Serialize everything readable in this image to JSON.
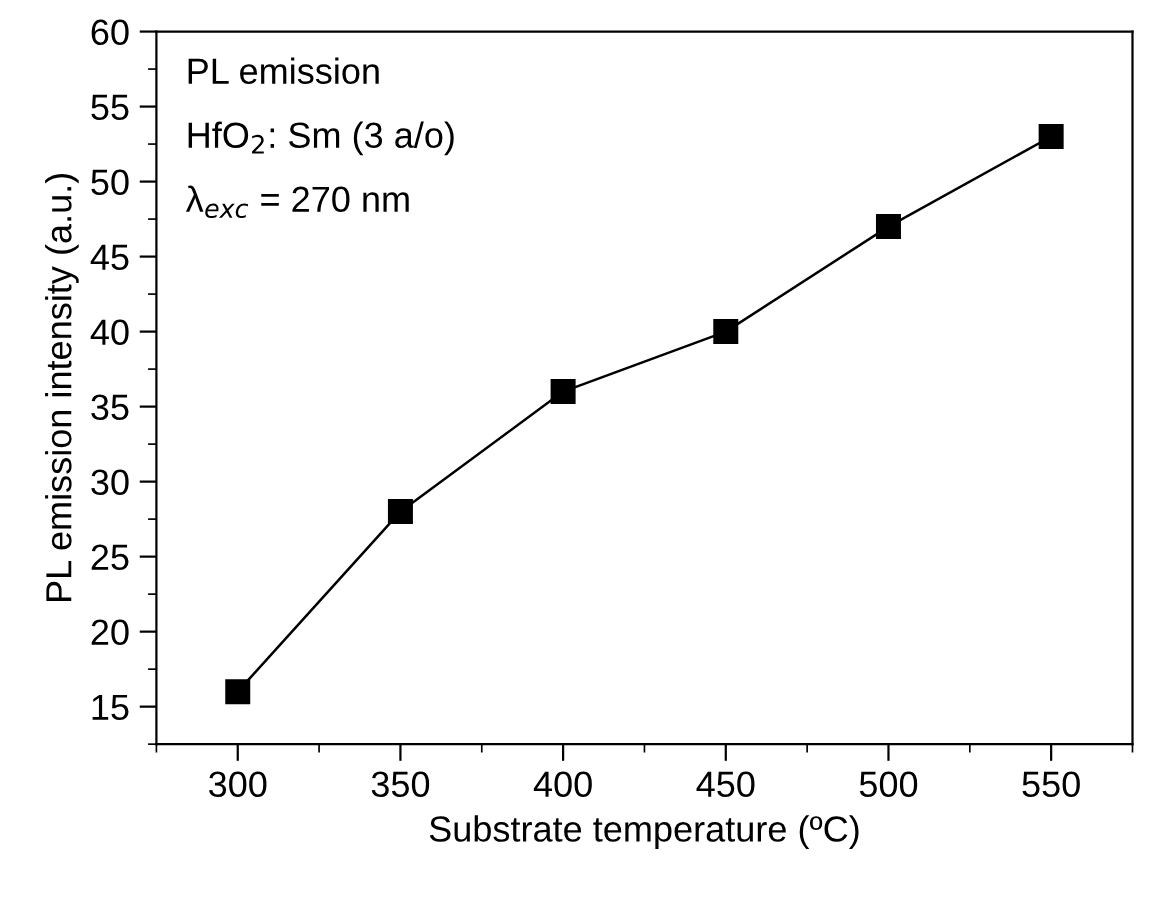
{
  "chart_data": {
    "type": "line",
    "xlabel": "Substrate temperature (ºC)",
    "ylabel": "PL emission intensity (a.u.)",
    "annotations": [
      "PL emission",
      "HfO$_{2}$: Sm (3 a/o)",
      "λ$_{exc}$ = 270 nm"
    ],
    "x": [
      300,
      350,
      400,
      450,
      500,
      550
    ],
    "series": [
      {
        "color": "#000000",
        "values": [
          16,
          28,
          36,
          40,
          47,
          53
        ]
      }
    ],
    "marker": "square",
    "line_style": "solid",
    "grid": false,
    "legend": false,
    "xlim": [
      275,
      575
    ],
    "ylim": [
      12.5,
      60
    ],
    "xticks": [
      {
        "value": 275,
        "label": null
      },
      300,
      {
        "value": 325,
        "label": null
      },
      350,
      {
        "value": 375,
        "label": null
      },
      400,
      {
        "value": 425,
        "label": null
      },
      450,
      {
        "value": 475,
        "label": null
      },
      500,
      {
        "value": 525,
        "label": null
      },
      550,
      {
        "value": 575,
        "label": null
      }
    ],
    "yticks": [
      {
        "value": 12.5,
        "label": null
      },
      15,
      {
        "value": 17.5,
        "label": null
      },
      20,
      {
        "value": 22.5,
        "label": null
      },
      25,
      {
        "value": 27.5,
        "label": null
      },
      30,
      {
        "value": 32.5,
        "label": null
      },
      35,
      {
        "value": 37.5,
        "label": null
      },
      40,
      {
        "value": 42.5,
        "label": null
      },
      45,
      {
        "value": 47.5,
        "label": null
      },
      50,
      {
        "value": 52.5,
        "label": null
      },
      55,
      {
        "value": 57.5,
        "label": null
      },
      60
    ]
  }
}
